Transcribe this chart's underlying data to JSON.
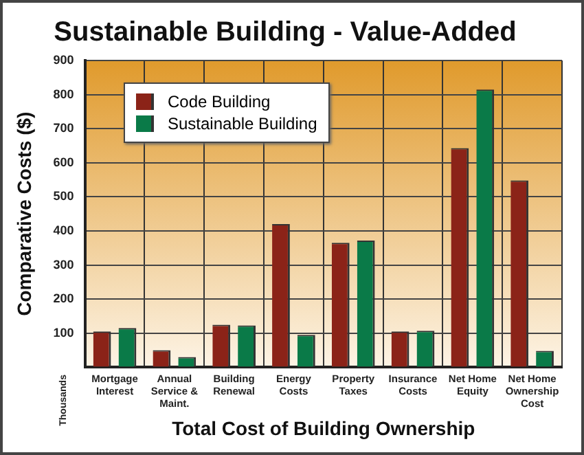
{
  "chart_data": {
    "type": "bar",
    "title": "Sustainable Building - Value-Added",
    "xlabel": "Total Cost of Building Ownership",
    "ylabel": "Comparative Costs ($)",
    "annotations": [
      "Thousands"
    ],
    "categories": [
      "Mortgage\nInterest",
      "Annual\nService &\nMaint.",
      "Building\nRenewal",
      "Energy\nCosts",
      "Property\nTaxes",
      "Insurance\nCosts",
      "Net Home\nEquity",
      "Net Home\nOwnership\nCost"
    ],
    "series": [
      {
        "name": "Code Building",
        "color": "#8b2318",
        "values": [
          105,
          50,
          125,
          420,
          365,
          105,
          643,
          548
        ]
      },
      {
        "name": "Sustainable Building",
        "color": "#0a7a48",
        "values": [
          115,
          30,
          123,
          95,
          372,
          107,
          815,
          48
        ]
      }
    ],
    "ylim": [
      0,
      900
    ],
    "yticks": [
      100,
      200,
      300,
      400,
      500,
      600,
      700,
      800,
      900
    ],
    "grid": true,
    "legend": "top left"
  }
}
